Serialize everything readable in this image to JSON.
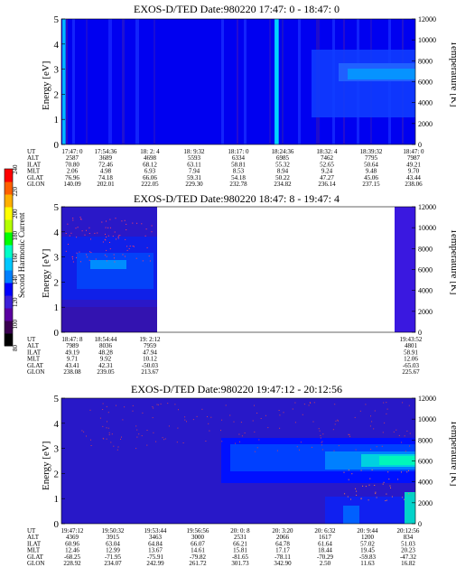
{
  "colors": {
    "background": "#0000ff",
    "ramp": [
      "#000000",
      "#3a0050",
      "#5a00a0",
      "#3c20d8",
      "#0000ff",
      "#0080ff",
      "#00c8ff",
      "#00ffc8",
      "#00ff00",
      "#b4ff00",
      "#ffff00",
      "#ffb000",
      "#ff6000",
      "#ff0000"
    ]
  },
  "colorbar": {
    "label": "Second Harmonic Current",
    "ticks": [
      "80",
      "100",
      "120",
      "140",
      "160",
      "180",
      "200",
      "220",
      "240"
    ]
  },
  "row_labels": [
    "UT",
    "ALT",
    "ILAT",
    "MLT",
    "GLAT",
    "GLON"
  ],
  "chart_data": [
    {
      "type": "heatmap",
      "title": "EXOS-D/TED   Date:980220  17:47: 0 - 18:47: 0",
      "ylabel": "Energy [eV]",
      "y2label": "Temperature [K]",
      "ylim": [
        0,
        5
      ],
      "y2lim": [
        0,
        12000
      ],
      "yticks": [
        "0",
        "1",
        "2",
        "3",
        "4",
        "5"
      ],
      "y2ticks": [
        "0",
        "2000",
        "4000",
        "6000",
        "8000",
        "10000",
        "12000"
      ],
      "columns": [
        [
          "17:47: 0",
          "2587",
          "70.80",
          "2.06",
          "76.96",
          "140.09"
        ],
        [
          "17:54:36",
          "3689",
          "72.46",
          "4.98",
          "74.18",
          "202.01"
        ],
        [
          "18: 2: 4",
          "4698",
          "68.12",
          "6.93",
          "66.06",
          "222.05"
        ],
        [
          "18: 9:32",
          "5593",
          "63.11",
          "7.94",
          "59.31",
          "229.30"
        ],
        [
          "18:17: 0",
          "6334",
          "58.81",
          "8.53",
          "54.18",
          "232.78"
        ],
        [
          "18:24:36",
          "6985",
          "55.32",
          "8.94",
          "50.22",
          "234.82"
        ],
        [
          "18:32: 4",
          "7462",
          "52.65",
          "9.24",
          "47.27",
          "236.14"
        ],
        [
          "18:39:32",
          "7795",
          "50.64",
          "9.48",
          "45.06",
          "237.15"
        ],
        [
          "18:47: 0",
          "7987",
          "49.21",
          "9.70",
          "43.44",
          "238.06"
        ]
      ]
    },
    {
      "type": "heatmap",
      "title": "EXOS-D/TED   Date:980220  18:47: 8 - 19:47: 4",
      "ylabel": "Energy [eV]",
      "y2label": "Temperature [K]",
      "ylim": [
        0,
        5
      ],
      "y2lim": [
        0,
        12000
      ],
      "yticks": [
        "0",
        "1",
        "2",
        "3",
        "4",
        "5"
      ],
      "y2ticks": [
        "0",
        "2000",
        "4000",
        "6000",
        "8000",
        "10000",
        "12000"
      ],
      "columns": [
        [
          "18:47: 8",
          "7989",
          "49.19",
          "9.71",
          "43.41",
          "238.08"
        ],
        [
          "18:54:44",
          "8036",
          "48.28",
          "9.92",
          "42.31",
          "239.05"
        ],
        [
          "19: 2:12",
          "7959",
          "47.94",
          "10.12",
          "-50.03",
          "213.67"
        ],
        [
          "19:43:52",
          "4801",
          "58.91",
          "12.06",
          "-65.03",
          "225.67"
        ]
      ]
    },
    {
      "type": "heatmap",
      "title": "EXOS-D/TED   Date:980220  19:47:12 - 20:12:56",
      "ylabel": "Energy [eV]",
      "y2label": "Temperature [K]",
      "ylim": [
        0,
        5
      ],
      "y2lim": [
        0,
        12000
      ],
      "yticks": [
        "0",
        "1",
        "2",
        "3",
        "4",
        "5"
      ],
      "y2ticks": [
        "0",
        "2000",
        "4000",
        "6000",
        "8000",
        "10000",
        "12000"
      ],
      "columns": [
        [
          "19:47:12",
          "4369",
          "60.96",
          "12.46",
          "-68.25",
          "228.92"
        ],
        [
          "19:50:32",
          "3915",
          "63.04",
          "12.99",
          "-71.95",
          "234.07"
        ],
        [
          "19:53:44",
          "3463",
          "64.84",
          "13.67",
          "-75.91",
          "242.99"
        ],
        [
          "19:56:56",
          "3000",
          "66.07",
          "14.61",
          "-79.82",
          "261.72"
        ],
        [
          "20: 0: 8",
          "2531",
          "66.21",
          "15.81",
          "-81.65",
          "301.73"
        ],
        [
          "20: 3:20",
          "2066",
          "64.78",
          "17.17",
          "-78.11",
          "342.90"
        ],
        [
          "20: 6:32",
          "1617",
          "61.64",
          "18.44",
          "-70.29",
          "2.50"
        ],
        [
          "20: 9:44",
          "1200",
          "57.02",
          "19.45",
          "-59.83",
          "11.63"
        ],
        [
          "20:12:56",
          "834",
          "51.03",
          "20.23",
          "-47.32",
          "16.82"
        ]
      ]
    }
  ]
}
